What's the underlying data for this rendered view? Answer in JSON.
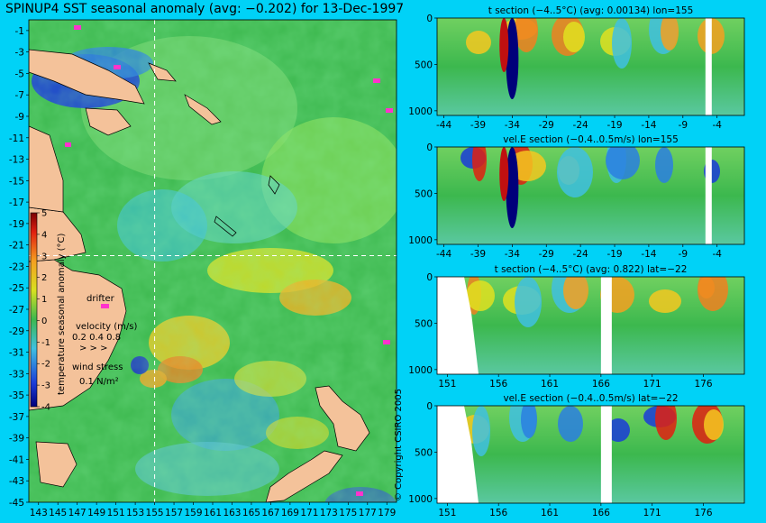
{
  "title": "SPINUP4 SST seasonal anomaly (avg: −0.202) for 13-Dec-1997",
  "map": {
    "lat_ticks": [
      "-1",
      "-3",
      "-5",
      "-7",
      "-9",
      "-11",
      "-13",
      "-15",
      "-17",
      "-19",
      "-21",
      "-23",
      "-25",
      "-27",
      "-29",
      "-31",
      "-33",
      "-35",
      "-37",
      "-39",
      "-41",
      "-43",
      "-45"
    ],
    "lon_ticks": [
      "143",
      "145",
      "147",
      "149",
      "151",
      "153",
      "155",
      "157",
      "159",
      "161",
      "163",
      "165",
      "167",
      "169",
      "171",
      "173",
      "175",
      "177",
      "179"
    ],
    "lat_range": [
      -45,
      0
    ],
    "lon_range": [
      142,
      180
    ],
    "section_lon": 155,
    "section_lat": -22,
    "colorbar": {
      "label": "temperature seasonal anomaly (°C)",
      "ticks": [
        "5",
        "4",
        "3",
        "2",
        "1",
        "0",
        "-1",
        "-2",
        "-3",
        "-4"
      ],
      "range": [
        -4,
        5
      ]
    },
    "legend": {
      "drifter": "drifter",
      "velocity_title": "velocity (m/s)",
      "velocity_scale": "0.2 0.4 0.8",
      "wind_title": "wind stress",
      "wind_scale": "0.1 N/m²"
    },
    "colors": {
      "land": "#f4c29a",
      "ocean_bg": "#39b84f",
      "frame_bg": "#00d2f7",
      "drifter": "#ff33cc"
    }
  },
  "panels": [
    {
      "title": "t section (−4..5°C) (avg: 0.00134) lon=155",
      "x_ticks": [
        "-44",
        "-39",
        "-34",
        "-29",
        "-24",
        "-19",
        "-14",
        "-9",
        "-4"
      ],
      "y_ticks": [
        "0",
        "500",
        "1000"
      ],
      "x_range": [
        -45,
        0
      ],
      "y_range": [
        0,
        1050
      ]
    },
    {
      "title": "vel.E section (−0.4..0.5m/s) lon=155",
      "x_ticks": [
        "-44",
        "-39",
        "-34",
        "-29",
        "-24",
        "-19",
        "-14",
        "-9",
        "-4"
      ],
      "y_ticks": [
        "0",
        "500",
        "1000"
      ],
      "x_range": [
        -45,
        0
      ],
      "y_range": [
        0,
        1050
      ]
    },
    {
      "title": "t section (−4..5°C) (avg: 0.822) lat=−22",
      "x_ticks": [
        "151",
        "156",
        "161",
        "166",
        "171",
        "176"
      ],
      "y_ticks": [
        "0",
        "500",
        "1000"
      ],
      "x_range": [
        150,
        180
      ],
      "y_range": [
        0,
        1050
      ]
    },
    {
      "title": "vel.E section (−0.4..0.5m/s) lat=−22",
      "x_ticks": [
        "151",
        "156",
        "161",
        "166",
        "171",
        "176"
      ],
      "y_ticks": [
        "0",
        "500",
        "1000"
      ],
      "x_range": [
        150,
        180
      ],
      "y_range": [
        0,
        1050
      ]
    }
  ],
  "copyright": "© Copyright CSIRO 2005"
}
